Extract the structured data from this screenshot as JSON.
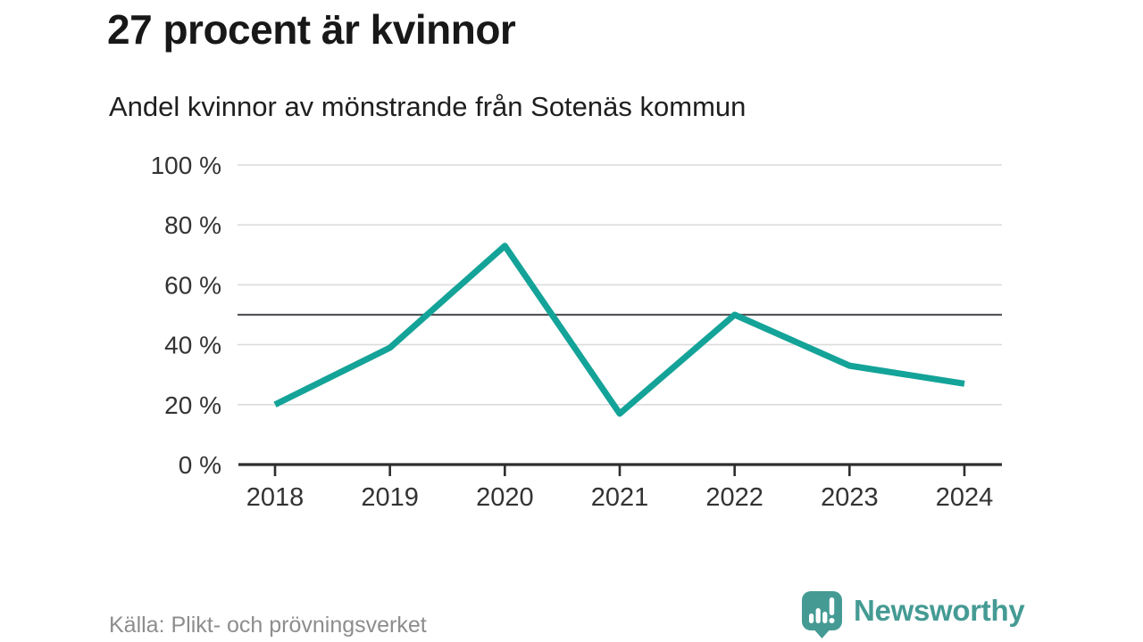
{
  "header": {
    "title": "27 procent är kvinnor",
    "subtitle": "Andel kvinnor av mönstrande från Sotenäs kommun"
  },
  "footer": {
    "source": "Källa: Plikt- och prövningsverket",
    "brand_name": "Newsworthy"
  },
  "colors": {
    "line": "#14a398",
    "grid": "#dcdcdc",
    "reference": "#55565a",
    "axis": "#2e2e2e",
    "tick_label": "#333333",
    "brand_teal": "#459b94"
  },
  "chart_data": {
    "type": "line",
    "title": "27 procent är kvinnor",
    "subtitle": "Andel kvinnor av mönstrande från Sotenäs kommun",
    "categories": [
      "2018",
      "2019",
      "2020",
      "2021",
      "2022",
      "2023",
      "2024"
    ],
    "series": [
      {
        "name": "Andel kvinnor av mönstrande från Sotenäs kommun",
        "values": [
          20,
          39,
          73,
          17,
          50,
          33,
          27
        ]
      }
    ],
    "unit": "%",
    "ylim": [
      0,
      100
    ],
    "yticks": [
      {
        "value": 0,
        "label": "0 %"
      },
      {
        "value": 20,
        "label": "20 %"
      },
      {
        "value": 40,
        "label": "40 %"
      },
      {
        "value": 60,
        "label": "60 %"
      },
      {
        "value": 80,
        "label": "80 %"
      },
      {
        "value": 100,
        "label": "100 %"
      }
    ],
    "reference_line": {
      "value": 50
    },
    "grid": true,
    "legend_position": "none"
  }
}
